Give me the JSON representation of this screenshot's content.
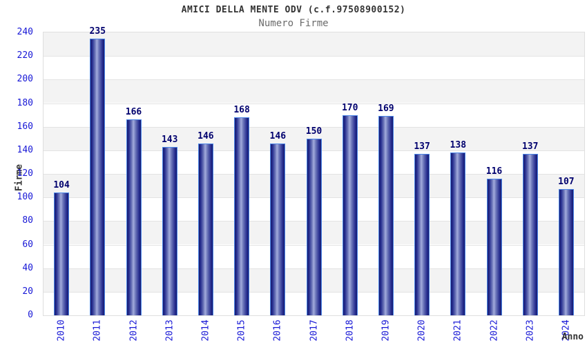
{
  "chart_data": {
    "type": "bar",
    "title": "AMICI DELLA MENTE ODV (c.f.97508900152)",
    "subtitle": "Numero Firme",
    "xlabel": "Anno",
    "ylabel": "Firme",
    "categories": [
      "2010",
      "2011",
      "2012",
      "2013",
      "2014",
      "2015",
      "2016",
      "2017",
      "2018",
      "2019",
      "2020",
      "2021",
      "2022",
      "2023",
      "2024"
    ],
    "values": [
      104,
      235,
      166,
      143,
      146,
      168,
      146,
      150,
      170,
      169,
      137,
      138,
      116,
      137,
      107
    ],
    "ylim": [
      0,
      240
    ],
    "ytick_step": 20,
    "grid": "horizontal-bands",
    "legend_position": "none",
    "colors": {
      "bar_edge_dark": "#171c6e",
      "bar_highlight": "#a2abdc",
      "bar_border": "#4b86e8",
      "tick_label": "#1717d6",
      "value_label": "#00006e",
      "band_gray": "#f3f3f3",
      "band_white": "#ffffff",
      "gridline": "#e3e3e3",
      "title_color": "#333333",
      "subtitle_color": "#6b6b6b",
      "background": "#ffffff"
    }
  }
}
